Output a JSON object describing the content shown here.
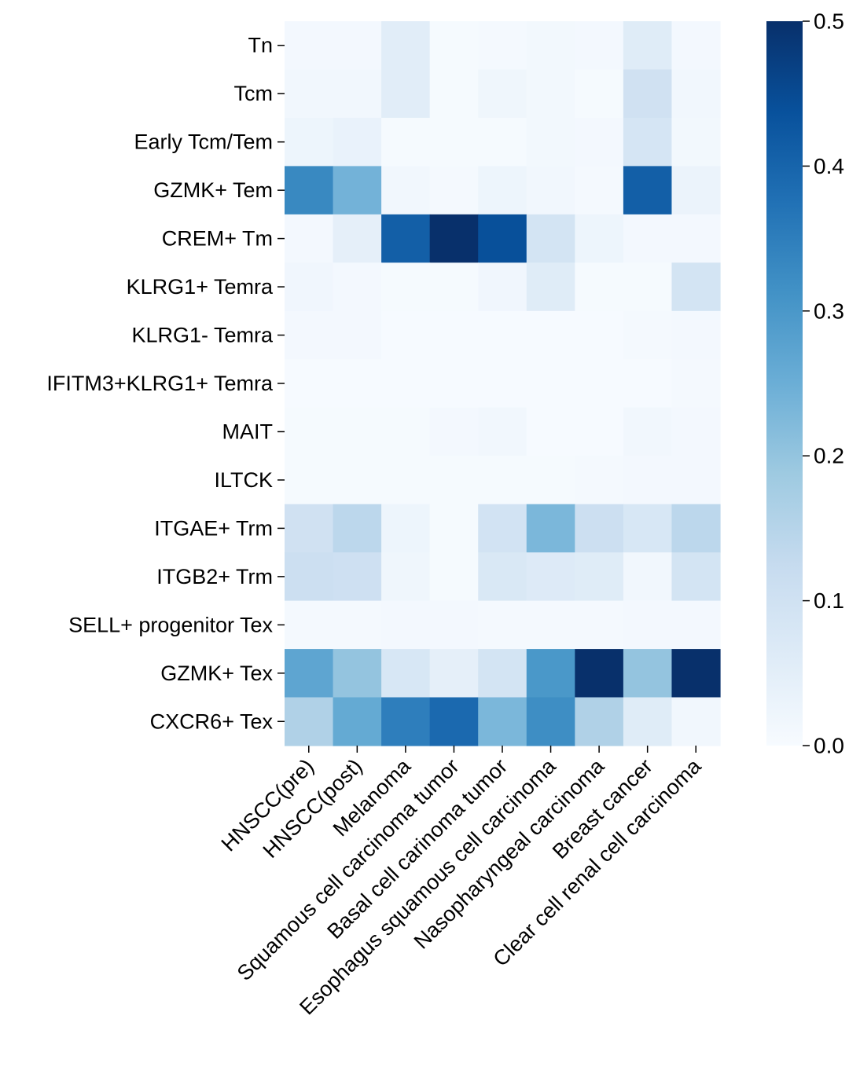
{
  "chart_data": {
    "type": "heatmap",
    "title": "",
    "xlabel": "",
    "ylabel": "",
    "columns": [
      "HNSCC(pre)",
      "HNSCC(post)",
      "Melanoma",
      "Squamous cell carcinoma tumor",
      "Basal cell carinoma tumor",
      "Esophagus squamous cell carcinoma",
      "Nasopharyngeal carcinoma",
      "Breast cancer",
      "Clear cell renal cell carcinoma"
    ],
    "rows": [
      "Tn",
      "Tcm",
      "Early Tcm/Tem",
      "GZMK+ Tem",
      "CREM+ Tm",
      "KLRG1+ Temra",
      "KLRG1- Temra",
      "IFITM3+KLRG1+ Temra",
      "MAIT",
      "ILTCK",
      "ITGAE+ Trm",
      "ITGB2+ Trm",
      "SELL+ progenitor Tex",
      "GZMK+ Tex",
      "CXCR6+ Tex"
    ],
    "values": [
      [
        0.01,
        0.01,
        0.055,
        0.005,
        0.008,
        0.012,
        0.01,
        0.06,
        0.01
      ],
      [
        0.015,
        0.015,
        0.055,
        0.005,
        0.02,
        0.012,
        0.005,
        0.1,
        0.015
      ],
      [
        0.025,
        0.035,
        0.005,
        0.005,
        0.005,
        0.012,
        0.01,
        0.085,
        0.012
      ],
      [
        0.33,
        0.24,
        0.015,
        0.008,
        0.025,
        0.015,
        0.008,
        0.41,
        0.03
      ],
      [
        0.01,
        0.045,
        0.41,
        0.5,
        0.44,
        0.09,
        0.025,
        0.01,
        0.01
      ],
      [
        0.018,
        0.01,
        0.005,
        0.005,
        0.018,
        0.06,
        0.005,
        0.005,
        0.09
      ],
      [
        0.01,
        0.01,
        0.003,
        0.003,
        0.003,
        0.003,
        0.003,
        0.008,
        0.01
      ],
      [
        0.003,
        0.003,
        0.003,
        0.003,
        0.003,
        0.003,
        0.003,
        0.003,
        0.008
      ],
      [
        0.005,
        0.005,
        0.005,
        0.01,
        0.015,
        0.003,
        0.003,
        0.015,
        0.01
      ],
      [
        0.005,
        0.005,
        0.005,
        0.005,
        0.005,
        0.005,
        0.008,
        0.01,
        0.01
      ],
      [
        0.1,
        0.14,
        0.025,
        0.005,
        0.095,
        0.23,
        0.11,
        0.08,
        0.14
      ],
      [
        0.11,
        0.105,
        0.02,
        0.005,
        0.075,
        0.065,
        0.06,
        0.015,
        0.09
      ],
      [
        0.008,
        0.008,
        0.01,
        0.01,
        0.008,
        0.008,
        0.008,
        0.01,
        0.01
      ],
      [
        0.27,
        0.2,
        0.08,
        0.045,
        0.09,
        0.3,
        0.5,
        0.2,
        0.5
      ],
      [
        0.16,
        0.26,
        0.35,
        0.39,
        0.23,
        0.32,
        0.16,
        0.06,
        0.015
      ]
    ],
    "colorbar": {
      "min": 0.0,
      "max": 0.5,
      "ticks": [
        "0.0",
        "0.1",
        "0.2",
        "0.3",
        "0.4",
        "0.5"
      ],
      "colormap": "Blues",
      "placement": "right"
    }
  }
}
